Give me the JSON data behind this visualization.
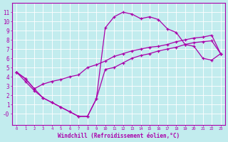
{
  "xlabel": "Windchill (Refroidissement éolien,°C)",
  "xlim": [
    -0.5,
    23.5
  ],
  "ylim": [
    -1.2,
    12
  ],
  "xticks": [
    0,
    1,
    2,
    3,
    4,
    5,
    6,
    7,
    8,
    9,
    10,
    11,
    12,
    13,
    14,
    15,
    16,
    17,
    18,
    19,
    20,
    21,
    22,
    23
  ],
  "yticks": [
    0,
    1,
    2,
    3,
    4,
    5,
    6,
    7,
    8,
    9,
    10,
    11
  ],
  "bg_color": "#c2ecee",
  "grid_color": "#b0d8dc",
  "line_color": "#aa00aa",
  "line1_x": [
    0,
    1,
    2,
    3,
    4,
    5,
    6,
    7,
    8,
    9,
    10,
    11,
    12,
    13,
    14,
    15,
    16,
    17,
    18,
    19,
    20,
    21,
    22,
    23
  ],
  "line1_y": [
    4.5,
    3.8,
    2.7,
    1.7,
    1.2,
    0.7,
    0.2,
    -0.3,
    -0.3,
    1.6,
    9.3,
    10.5,
    11.0,
    10.8,
    10.3,
    10.5,
    10.2,
    9.2,
    8.8,
    7.5,
    7.3,
    6.0,
    5.8,
    6.5
  ],
  "line2_x": [
    0,
    1,
    2,
    3,
    4,
    5,
    6,
    7,
    8,
    9,
    10,
    11,
    12,
    13,
    14,
    15,
    16,
    17,
    18,
    19,
    20,
    21,
    22,
    23
  ],
  "line2_y": [
    4.5,
    3.8,
    2.7,
    3.2,
    3.5,
    3.7,
    4.0,
    4.2,
    5.0,
    5.3,
    5.7,
    6.2,
    6.5,
    6.8,
    7.0,
    7.2,
    7.3,
    7.5,
    7.8,
    8.0,
    8.2,
    8.3,
    8.5,
    6.5
  ],
  "line3_x": [
    0,
    1,
    2,
    3,
    4,
    5,
    6,
    7,
    8,
    9,
    10,
    11,
    12,
    13,
    14,
    15,
    16,
    17,
    18,
    19,
    20,
    21,
    22,
    23
  ],
  "line3_y": [
    4.5,
    3.5,
    2.5,
    1.7,
    1.2,
    0.7,
    0.2,
    -0.3,
    -0.3,
    1.6,
    4.8,
    5.0,
    5.5,
    6.0,
    6.3,
    6.5,
    6.8,
    7.0,
    7.2,
    7.5,
    7.7,
    7.8,
    7.9,
    6.5
  ]
}
